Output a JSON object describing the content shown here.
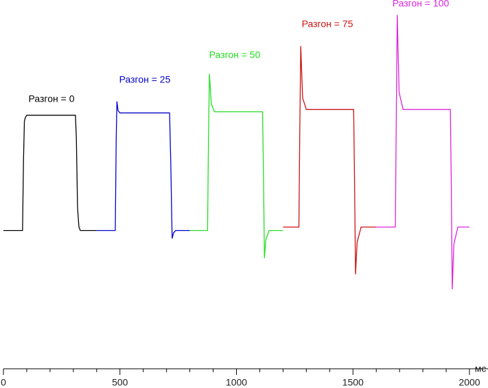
{
  "chart_data": {
    "type": "line",
    "x_label": "мс",
    "xlim": [
      0,
      2000
    ],
    "xticks": [
      0,
      500,
      1000,
      1500,
      2000
    ],
    "xminorticks": [
      100,
      200,
      300,
      400,
      600,
      700,
      800,
      900,
      1100,
      1200,
      1300,
      1400,
      1600,
      1700,
      1800,
      1900
    ],
    "ylim": [
      -120,
      200
    ],
    "series": [
      {
        "name": "Разгон = 0",
        "color": "#000000",
        "x": [
          0,
          82,
          86,
          90,
          94,
          100,
          309,
          313,
          318,
          324,
          330,
          400
        ],
        "values": [
          0,
          0,
          60,
          95,
          98,
          100,
          100,
          80,
          20,
          3,
          0,
          0
        ]
      },
      {
        "name": "Разгон = 25",
        "color": "#0000cc",
        "x": [
          400,
          480,
          484,
          487,
          492,
          500,
          713,
          718,
          724,
          730,
          740,
          800
        ],
        "values": [
          0,
          0,
          80,
          112,
          104,
          102,
          102,
          60,
          -7,
          -2,
          0,
          0
        ]
      },
      {
        "name": "Разгон = 50",
        "color": "#22dd22",
        "x": [
          800,
          876,
          880,
          884,
          892,
          905,
          1112,
          1116,
          1120,
          1126,
          1140,
          1200
        ],
        "values": [
          0,
          0,
          80,
          136,
          110,
          103,
          103,
          50,
          -24,
          -8,
          0,
          0
        ]
      },
      {
        "name": "Разгон = 75",
        "color": "#cc1111",
        "x": [
          1200,
          1268,
          1272,
          1276,
          1284,
          1300,
          1503,
          1507,
          1511,
          1518,
          1535,
          1600
        ],
        "values": [
          3,
          3,
          90,
          160,
          115,
          105,
          105,
          40,
          -38,
          -10,
          3,
          3
        ]
      },
      {
        "name": "Разгон = 100",
        "color": "#dd22dd",
        "x": [
          1600,
          1682,
          1686,
          1690,
          1698,
          1715,
          1918,
          1922,
          1926,
          1933,
          1950,
          2000
        ],
        "values": [
          3,
          3,
          100,
          187,
          120,
          105,
          105,
          40,
          -51,
          -12,
          3,
          3
        ]
      }
    ]
  }
}
